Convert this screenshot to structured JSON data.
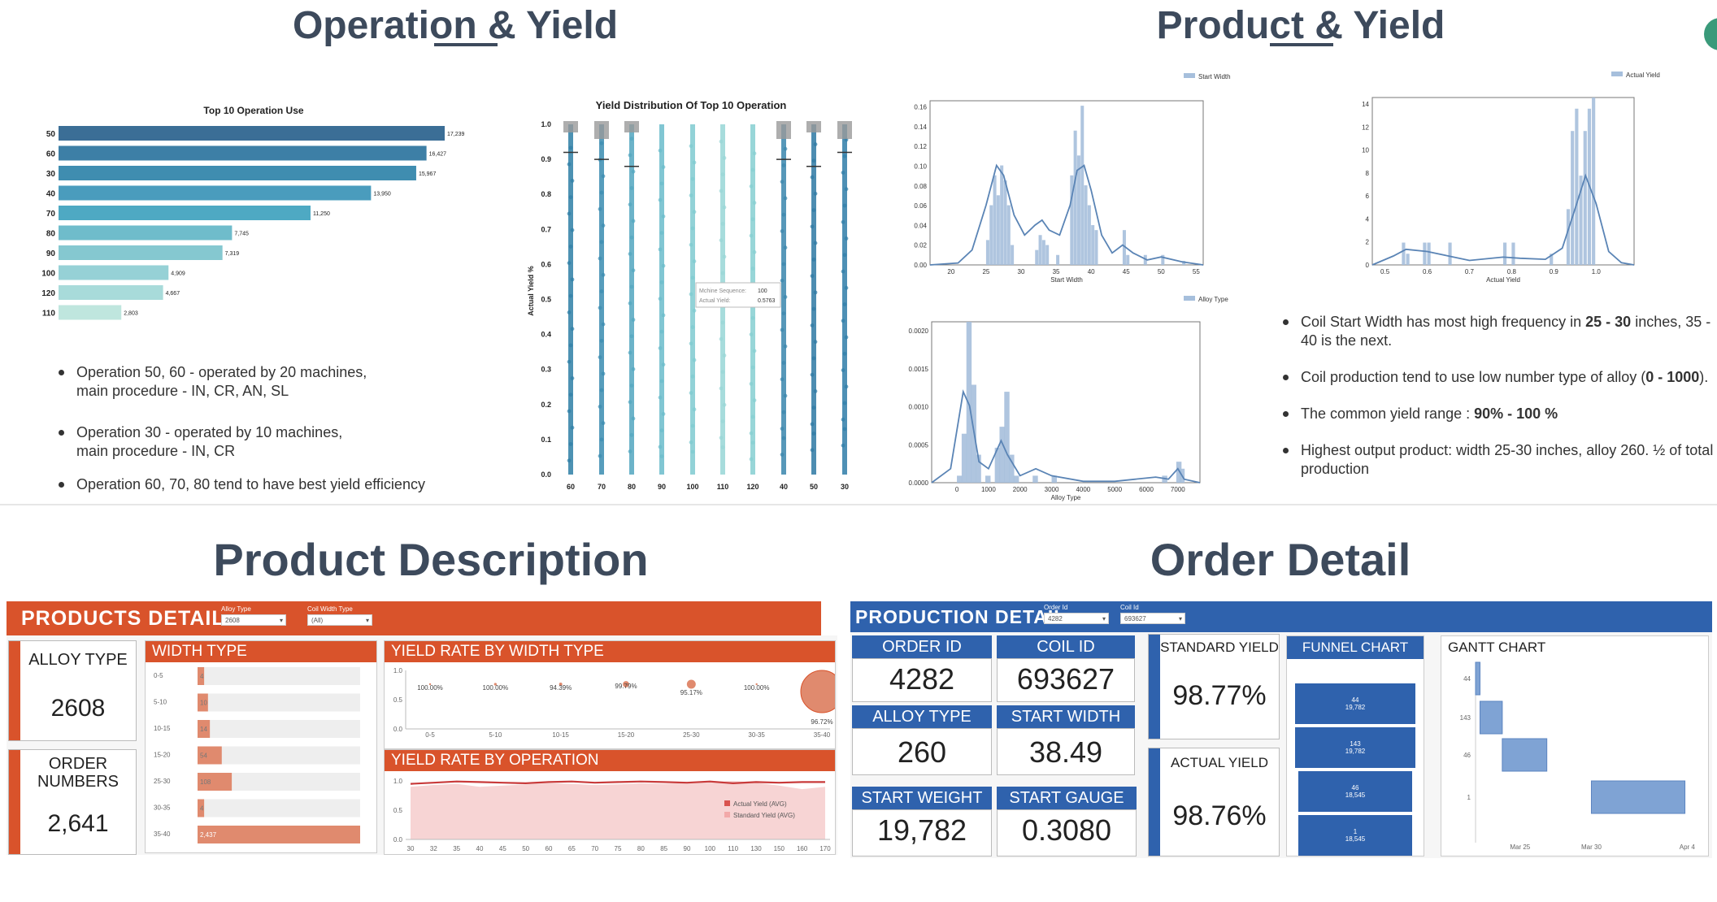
{
  "op_yield": {
    "title": "Operation & Yield",
    "bar_chart": {
      "title": "Top 10 Operation Use",
      "categories": [
        "50",
        "60",
        "30",
        "40",
        "70",
        "80",
        "90",
        "100",
        "120",
        "110"
      ],
      "values": [
        17239,
        16427,
        15967,
        13950,
        11250,
        7745,
        7319,
        4909,
        4667,
        2803
      ],
      "value_labels": [
        "17,239",
        "16,427",
        "15,967",
        "13,950",
        "11,250",
        "7,745",
        "7,319",
        "4,909",
        "4,667",
        "2,803"
      ],
      "colors": [
        "#3b6e96",
        "#3d7fa6",
        "#3f8db0",
        "#4a9cbd",
        "#4ea9c3",
        "#6fbccb",
        "#85c8d0",
        "#96d1d6",
        "#a8dbda",
        "#bfe6de"
      ]
    },
    "strip_chart": {
      "title": "Yield Distribution Of Top 10 Operation",
      "ylabel": "Actual Yield %",
      "categories": [
        "60",
        "70",
        "80",
        "90",
        "100",
        "110",
        "120",
        "40",
        "50",
        "30"
      ],
      "yticks": [
        "0.0",
        "0.1",
        "0.2",
        "0.3",
        "0.4",
        "0.5",
        "0.6",
        "0.7",
        "0.8",
        "0.9",
        "1.0"
      ],
      "ylim": [
        0,
        1.0
      ],
      "strip_colors": [
        "#2e7fa6",
        "#3a8cb0",
        "#52a6bf",
        "#6bbccb",
        "#7fcad0",
        "#98d6d6",
        "#86cfd1",
        "#3a86ad",
        "#2e79a3",
        "#2f7da8"
      ],
      "tooltip": {
        "line1_label": "Mchine Sequence:",
        "line1_value": "100",
        "line2_label": "Actual Yield:",
        "line2_value": "0.5763"
      }
    },
    "bullets": [
      {
        "line1": "Operation 50,   60 - operated by 20 machines,",
        "line2": "main procedure - IN, CR, AN, SL"
      },
      {
        "line1": "Operation 30 - operated by 10 machines,",
        "line2": "main procedure - IN, CR"
      },
      {
        "line1": "Operation 60, 70, 80 tend to have best yield efficiency",
        "line2": ""
      }
    ]
  },
  "prod_yield": {
    "title": "Product & Yield",
    "hist_width": {
      "legend": "Start Width",
      "xlabel": "Start Width",
      "xticks": [
        "20",
        "25",
        "30",
        "35",
        "40",
        "45",
        "50",
        "55"
      ],
      "yticks": [
        "0.00",
        "0.02",
        "0.04",
        "0.06",
        "0.08",
        "0.10",
        "0.12",
        "0.14",
        "0.16"
      ],
      "xlim": [
        17,
        56
      ],
      "ylim": [
        0,
        0.165
      ],
      "bins": [
        [
          25,
          0.025
        ],
        [
          25.5,
          0.06
        ],
        [
          26,
          0.09
        ],
        [
          26.5,
          0.07
        ],
        [
          27,
          0.1
        ],
        [
          27.5,
          0.085
        ],
        [
          28,
          0.06
        ],
        [
          28.5,
          0.02
        ],
        [
          32,
          0.015
        ],
        [
          32.5,
          0.03
        ],
        [
          33,
          0.025
        ],
        [
          33.5,
          0.02
        ],
        [
          35,
          0.01
        ],
        [
          37,
          0.09
        ],
        [
          37.5,
          0.135
        ],
        [
          38,
          0.11
        ],
        [
          38.5,
          0.16
        ],
        [
          39,
          0.08
        ],
        [
          39.5,
          0.06
        ],
        [
          40,
          0.04
        ],
        [
          40.5,
          0.035
        ],
        [
          44.5,
          0.035
        ],
        [
          45,
          0.01
        ],
        [
          47.5,
          0.01
        ],
        [
          50,
          0.01
        ],
        [
          53,
          0.004
        ]
      ],
      "kde": [
        [
          17,
          0
        ],
        [
          21,
          0.002
        ],
        [
          23,
          0.015
        ],
        [
          25,
          0.06
        ],
        [
          26.5,
          0.1
        ],
        [
          27.5,
          0.09
        ],
        [
          29,
          0.05
        ],
        [
          30.5,
          0.03
        ],
        [
          32,
          0.04
        ],
        [
          33,
          0.045
        ],
        [
          34,
          0.035
        ],
        [
          35.5,
          0.03
        ],
        [
          37,
          0.06
        ],
        [
          38,
          0.095
        ],
        [
          39,
          0.1
        ],
        [
          40,
          0.075
        ],
        [
          41.5,
          0.03
        ],
        [
          43,
          0.012
        ],
        [
          44.5,
          0.02
        ],
        [
          46,
          0.012
        ],
        [
          48,
          0.005
        ],
        [
          50,
          0.008
        ],
        [
          53,
          0.003
        ],
        [
          56,
          0
        ]
      ]
    },
    "hist_yield": {
      "legend": "Actual Yield",
      "xlabel": "Actual Yield",
      "xticks": [
        "0.5",
        "0.6",
        "0.7",
        "0.8",
        "0.9",
        "1.0"
      ],
      "yticks": [
        "0",
        "2",
        "4",
        "6",
        "8",
        "10",
        "12",
        "14"
      ],
      "xlim": [
        0.47,
        1.09
      ],
      "ylim": [
        0,
        15
      ],
      "bins": [
        [
          0.54,
          2
        ],
        [
          0.55,
          1
        ],
        [
          0.59,
          2
        ],
        [
          0.6,
          2
        ],
        [
          0.65,
          2
        ],
        [
          0.78,
          2
        ],
        [
          0.8,
          2
        ],
        [
          0.89,
          1
        ],
        [
          0.93,
          5
        ],
        [
          0.94,
          12
        ],
        [
          0.95,
          14
        ],
        [
          0.96,
          8
        ],
        [
          0.97,
          12
        ],
        [
          0.98,
          14
        ],
        [
          0.99,
          15
        ]
      ],
      "kde": [
        [
          0.47,
          0
        ],
        [
          0.52,
          0.8
        ],
        [
          0.55,
          1.4
        ],
        [
          0.6,
          1.2
        ],
        [
          0.65,
          0.8
        ],
        [
          0.7,
          0.4
        ],
        [
          0.78,
          0.7
        ],
        [
          0.82,
          0.6
        ],
        [
          0.88,
          0.5
        ],
        [
          0.92,
          1.5
        ],
        [
          0.95,
          5
        ],
        [
          0.975,
          8
        ],
        [
          1.0,
          5.5
        ],
        [
          1.03,
          1.2
        ],
        [
          1.06,
          0.2
        ],
        [
          1.09,
          0
        ]
      ]
    },
    "hist_alloy": {
      "legend": "Alloy Type",
      "xlabel": "Alloy Type",
      "xticks": [
        "0",
        "1000",
        "2000",
        "3000",
        "4000",
        "5000",
        "6000",
        "7000"
      ],
      "yticks": [
        "0.0000",
        "0.0005",
        "0.0010",
        "0.0015",
        "0.0020"
      ],
      "xlim": [
        -800,
        7700
      ],
      "ylim": [
        0,
        0.0023
      ],
      "bins": [
        [
          0,
          0.0001
        ],
        [
          150,
          0.0007
        ],
        [
          300,
          0.0023
        ],
        [
          450,
          0.0014
        ],
        [
          600,
          0.0004
        ],
        [
          900,
          0.0001
        ],
        [
          1200,
          0.0005
        ],
        [
          1350,
          0.0008
        ],
        [
          1500,
          0.0013
        ],
        [
          1650,
          0.0004
        ],
        [
          1800,
          0.0001
        ],
        [
          2400,
          0.0001
        ],
        [
          3000,
          0.0001
        ],
        [
          6500,
          0.0001
        ],
        [
          6950,
          0.0003
        ],
        [
          7050,
          0.0002
        ]
      ],
      "kde": [
        [
          -800,
          0
        ],
        [
          -200,
          0.0002
        ],
        [
          200,
          0.0013
        ],
        [
          400,
          0.0011
        ],
        [
          700,
          0.0003
        ],
        [
          1000,
          0.0002
        ],
        [
          1400,
          0.0006
        ],
        [
          1600,
          0.0004
        ],
        [
          2000,
          0.0001
        ],
        [
          2500,
          0.0002
        ],
        [
          3000,
          0.0001
        ],
        [
          4000,
          2e-05
        ],
        [
          5000,
          2e-05
        ],
        [
          6300,
          8e-05
        ],
        [
          6700,
          5e-05
        ],
        [
          7000,
          0.0002
        ],
        [
          7200,
          5e-05
        ],
        [
          7700,
          0
        ]
      ]
    },
    "bullets": [
      {
        "pre": "Coil Start Width has most high frequency in ",
        "bold": "25 - 30",
        "post": " inches, 35 -",
        "line2": "40 is the next."
      },
      {
        "pre": "Coil production tend to use low number type of alloy (",
        "bold": "0 - 1000",
        "post": ").",
        "line2": ""
      },
      {
        "pre": "The common yield range : ",
        "bold": "90% - 100 %",
        "post": "",
        "line2": ""
      },
      {
        "pre": "Highest output product: width 25-30 inches, alloy 260.  ½ of total",
        "bold": "",
        "post": "",
        "line2": "production"
      }
    ]
  },
  "product_desc": {
    "title": "Product Description",
    "header": "PRODUCTS DETAIL",
    "filter1_label": "Alloy Type",
    "filter1_value": "2608",
    "filter2_label": "Coil Width Type",
    "filter2_value": "(All)",
    "accent": "#d9532b",
    "alloy_label": "ALLOY TYPE",
    "alloy_value": "2608",
    "order_label1": "ORDER",
    "order_label2": "NUMBERS",
    "order_value": "2,641",
    "width_type": {
      "title": "WIDTH TYPE",
      "categories": [
        "0-5",
        "5-10",
        "10-15",
        "15-20",
        "25-30",
        "30-35",
        "35-40"
      ],
      "values": [
        4,
        10,
        14,
        54,
        108,
        4,
        2437
      ],
      "labels": [
        "4",
        "10",
        "14",
        "54",
        "108",
        "4",
        "2,437"
      ]
    },
    "yield_width": {
      "title": "YIELD RATE BY WIDTH TYPE",
      "categories": [
        "0-5",
        "5-10",
        "10-15",
        "15-20",
        "25-30",
        "30-35",
        "35-40"
      ],
      "yields": [
        "100.00%",
        "100.00%",
        "94.39%",
        "99.79%",
        "95.17%",
        "100.00%",
        "96.72%"
      ],
      "counts": [
        4,
        10,
        14,
        54,
        108,
        4,
        2437
      ],
      "yticks": [
        "0.0",
        "0.5",
        "1.0"
      ]
    },
    "yield_op": {
      "title": "YIELD RATE BY OPERATION",
      "categories": [
        "30",
        "32",
        "35",
        "40",
        "45",
        "50",
        "60",
        "65",
        "70",
        "75",
        "80",
        "85",
        "90",
        "100",
        "110",
        "130",
        "150",
        "160",
        "170"
      ],
      "actual": [
        0.95,
        0.97,
        0.99,
        0.98,
        0.97,
        0.96,
        0.98,
        0.99,
        0.97,
        0.98,
        0.99,
        0.98,
        0.97,
        0.99,
        0.96,
        0.98,
        0.97,
        0.98,
        0.98
      ],
      "standard": [
        0.9,
        0.93,
        0.95,
        0.9,
        0.92,
        0.94,
        0.96,
        0.95,
        0.93,
        0.94,
        0.96,
        0.95,
        0.97,
        0.98,
        1.0,
        0.97,
        0.92,
        0.86,
        0.9
      ],
      "legend_actual": "Actual Yield (AVG)",
      "legend_standard": "Standard Yield  (AVG)",
      "yticks": [
        "0.0",
        "0.5",
        "1.0"
      ]
    }
  },
  "order_detail": {
    "title": "Order Detail",
    "header": "PRODUCTION DETAIL",
    "filter1_label": "Order Id",
    "filter1_value": "4282",
    "filter2_label": "Coil Id",
    "filter2_value": "693627",
    "accent": "#2f62ad",
    "cards": [
      {
        "label": "ORDER ID",
        "value": "4282"
      },
      {
        "label": "COIL ID",
        "value": "693627"
      },
      {
        "label": "ALLOY TYPE",
        "value": "260"
      },
      {
        "label": "START WIDTH",
        "value": "38.49"
      },
      {
        "label": "START WEIGHT",
        "value": "19,782"
      },
      {
        "label": "START GAUGE",
        "value": "0.3080"
      }
    ],
    "standard_yield_label": "STANDARD YIELD",
    "standard_yield_value": "98.77%",
    "actual_yield_label": "ACTUAL YIELD",
    "actual_yield_value": "98.76%",
    "funnel": {
      "title": "FUNNEL CHART",
      "items": [
        {
          "op": "44",
          "weight": "19,782"
        },
        {
          "op": "143",
          "weight": "19,782"
        },
        {
          "op": "46",
          "weight": "18,545"
        },
        {
          "op": "1",
          "weight": "18,545"
        }
      ]
    },
    "gantt": {
      "title": "GANTT CHART",
      "rows": [
        "44",
        "143",
        "46",
        "1"
      ],
      "xticks": [
        "Mar 25",
        "Mar 30",
        "Apr 4"
      ]
    }
  }
}
